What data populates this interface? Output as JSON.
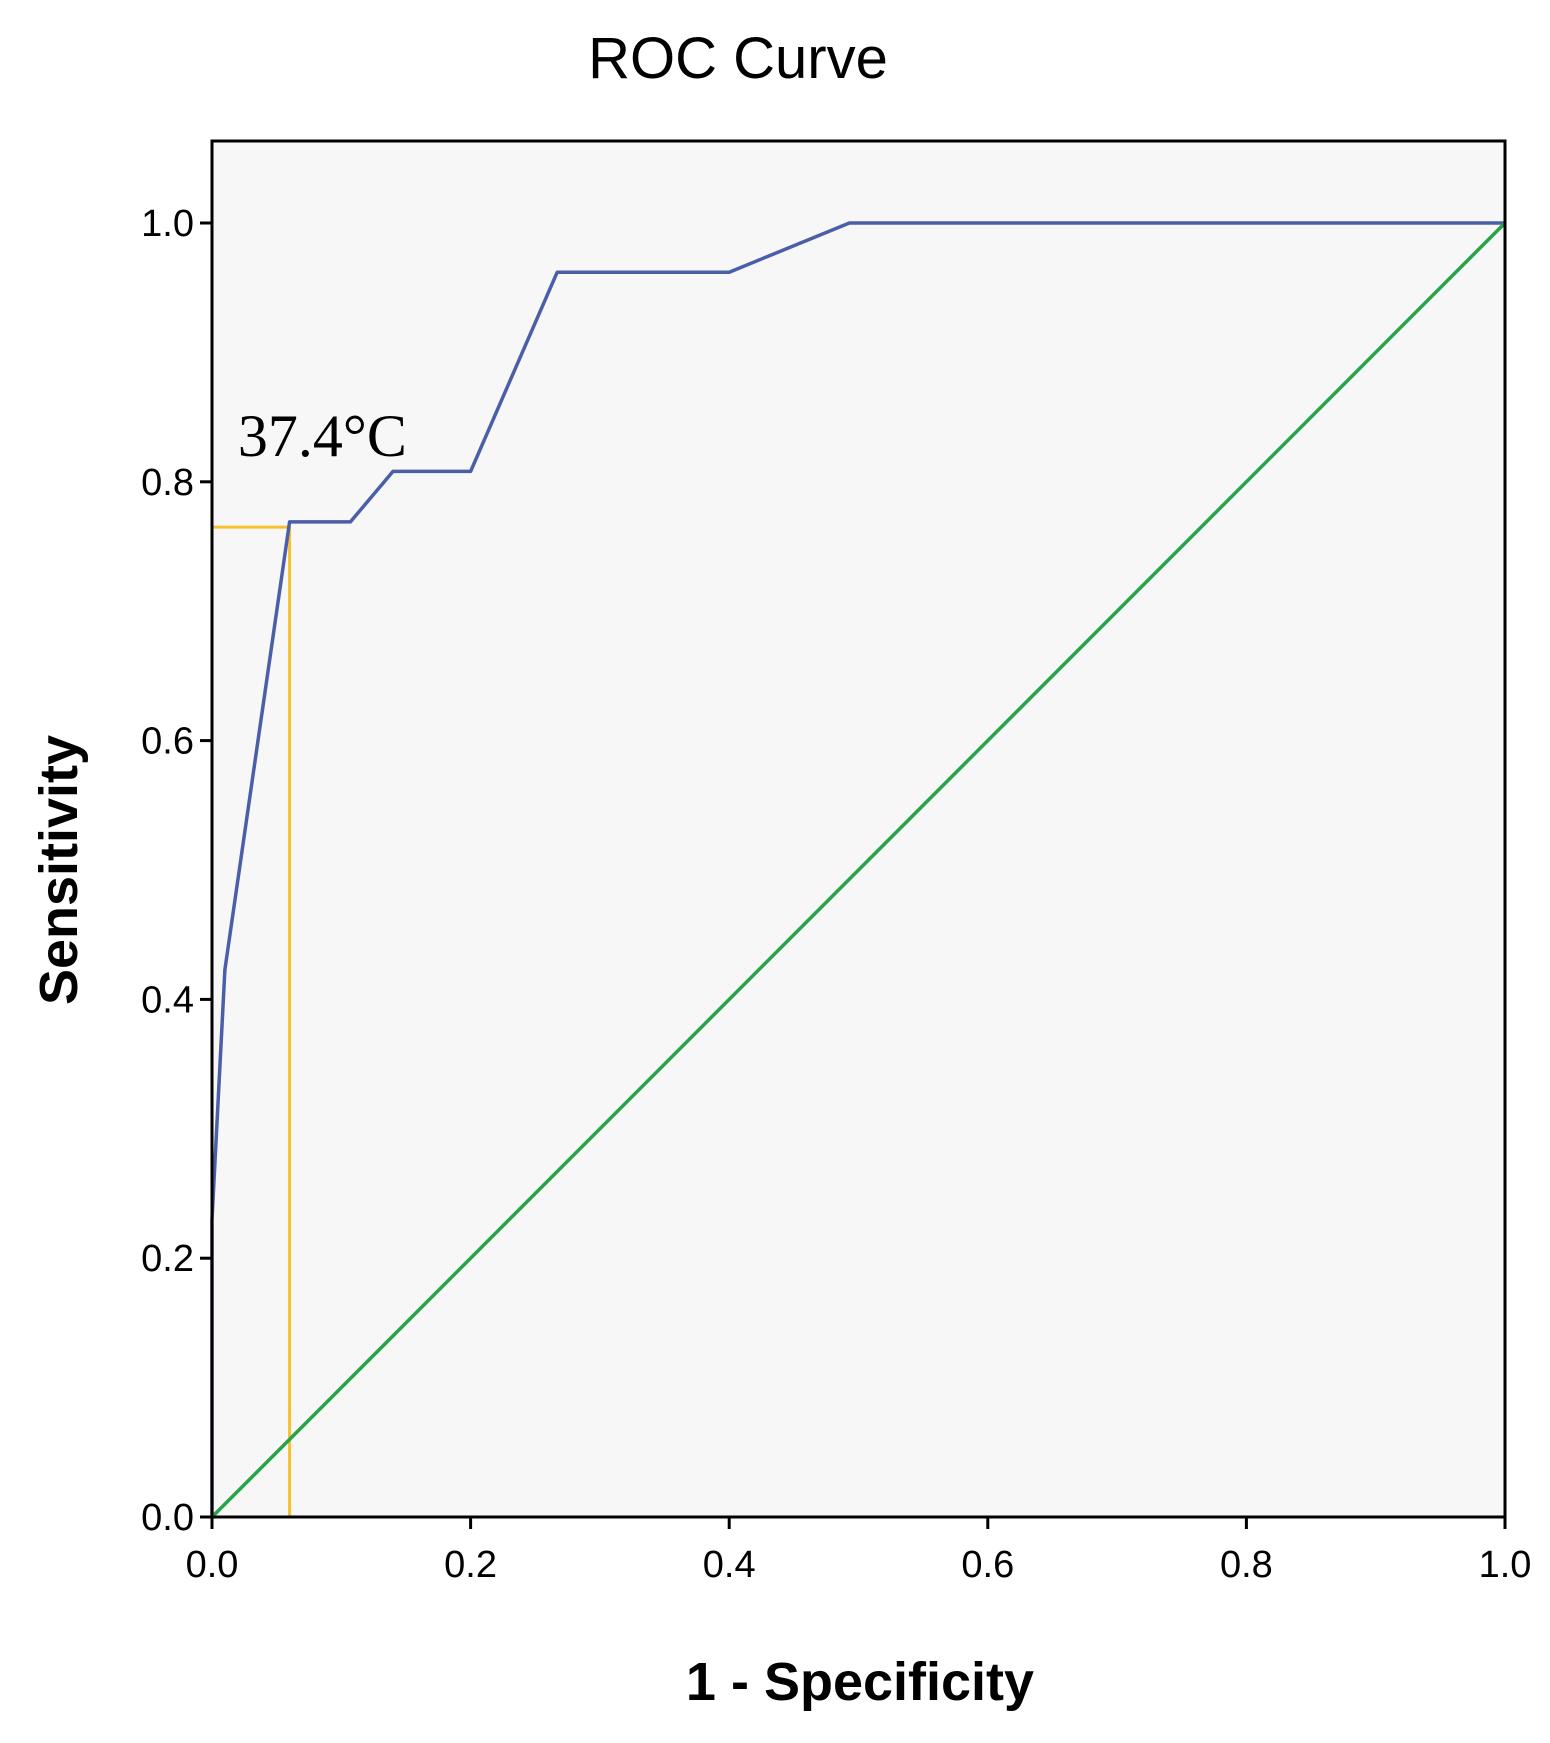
{
  "chart_data": {
    "type": "line",
    "title": "ROC Curve",
    "xlabel": "1 - Specificity",
    "ylabel": "Sensitivity",
    "xlim": [
      0,
      1
    ],
    "ylim": [
      0,
      1.065
    ],
    "x_ticks": [
      "0.0",
      "0.2",
      "0.4",
      "0.6",
      "0.8",
      "1.0"
    ],
    "y_ticks": [
      "0.0",
      "0.2",
      "0.4",
      "0.6",
      "0.8",
      "1.0"
    ],
    "grid": false,
    "plot_background": "#f7f7f7",
    "series": [
      {
        "color": "#4a5fa8",
        "x": [
          0,
          0,
          0.01,
          0.06,
          0.107,
          0.14,
          0.2,
          0.267,
          0.4,
          0.493,
          1.0
        ],
        "y": [
          0,
          0.23,
          0.423,
          0.769,
          0.769,
          0.808,
          0.808,
          0.962,
          0.962,
          1.0,
          1.0
        ]
      },
      {
        "color": "#27a348",
        "x": [
          0,
          1
        ],
        "y": [
          0,
          1
        ]
      }
    ],
    "reference_lines": {
      "color": "#f5c12e",
      "point": {
        "x": 0.06,
        "y": 0.765
      }
    },
    "annotations": [
      {
        "text": "37.4°C",
        "x": 0.02,
        "y": 0.82
      }
    ]
  }
}
